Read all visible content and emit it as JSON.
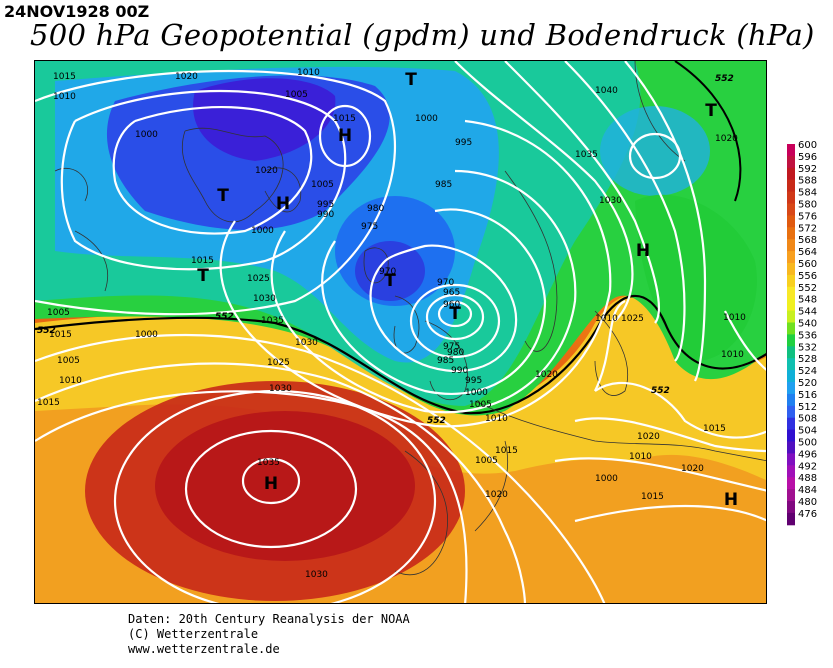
{
  "header": {
    "datetime": "24NOV1928 00Z",
    "title": "500 hPa Geopotential (gpdm) und Bodendruck (hPa)"
  },
  "legend": {
    "levels": [
      "600",
      "596",
      "592",
      "588",
      "584",
      "580",
      "576",
      "572",
      "568",
      "564",
      "560",
      "556",
      "552",
      "548",
      "544",
      "540",
      "536",
      "532",
      "528",
      "524",
      "520",
      "516",
      "512",
      "508",
      "504",
      "500",
      "496",
      "492",
      "488",
      "484",
      "480",
      "476"
    ],
    "colors": [
      "#c8005a",
      "#c01240",
      "#c01820",
      "#c82a18",
      "#d03818",
      "#d84818",
      "#e05a10",
      "#e87010",
      "#f08818",
      "#f8a020",
      "#f8b820",
      "#f8d020",
      "#f8e828",
      "#f0f020",
      "#c8f020",
      "#70e020",
      "#20d040",
      "#10c080",
      "#10c0b0",
      "#10b0d8",
      "#20a0f0",
      "#2080f0",
      "#3060f0",
      "#3030e0",
      "#3010d0",
      "#5010c0",
      "#8010c0",
      "#a010b8",
      "#b810a8",
      "#a01090",
      "#800880",
      "#600070"
    ]
  },
  "map_labels": {
    "highs": [
      "H",
      "H",
      "H",
      "H",
      "H"
    ],
    "lows": [
      "T",
      "T",
      "T",
      "T",
      "T",
      "T"
    ],
    "isobars": [
      "1015",
      "1020",
      "1010",
      "1010",
      "1005",
      "1000",
      "1015",
      "1005",
      "1000",
      "995",
      "990",
      "1000",
      "975",
      "980",
      "985",
      "995",
      "970",
      "970",
      "965",
      "960",
      "975",
      "980",
      "985",
      "990",
      "995",
      "1000",
      "1005",
      "1010",
      "1015",
      "1020",
      "1025",
      "1030",
      "1035",
      "1030",
      "1035",
      "1040",
      "1030",
      "1025",
      "1020",
      "1015",
      "1010",
      "1005",
      "1005",
      "1010",
      "1015",
      "1020",
      "1025",
      "1030",
      "1035",
      "1030",
      "1020",
      "1015",
      "1020",
      "1015",
      "1010",
      "1000",
      "1010",
      "1015",
      "1020",
      "1005",
      "1000",
      "1010"
    ],
    "geopotential": [
      "552",
      "552",
      "552",
      "552",
      "552"
    ]
  },
  "footer": {
    "line1": "Daten: 20th Century Reanalysis der NOAA",
    "line2": "(C) Wetterzentrale",
    "line3": "www.wetterzentrale.de"
  }
}
